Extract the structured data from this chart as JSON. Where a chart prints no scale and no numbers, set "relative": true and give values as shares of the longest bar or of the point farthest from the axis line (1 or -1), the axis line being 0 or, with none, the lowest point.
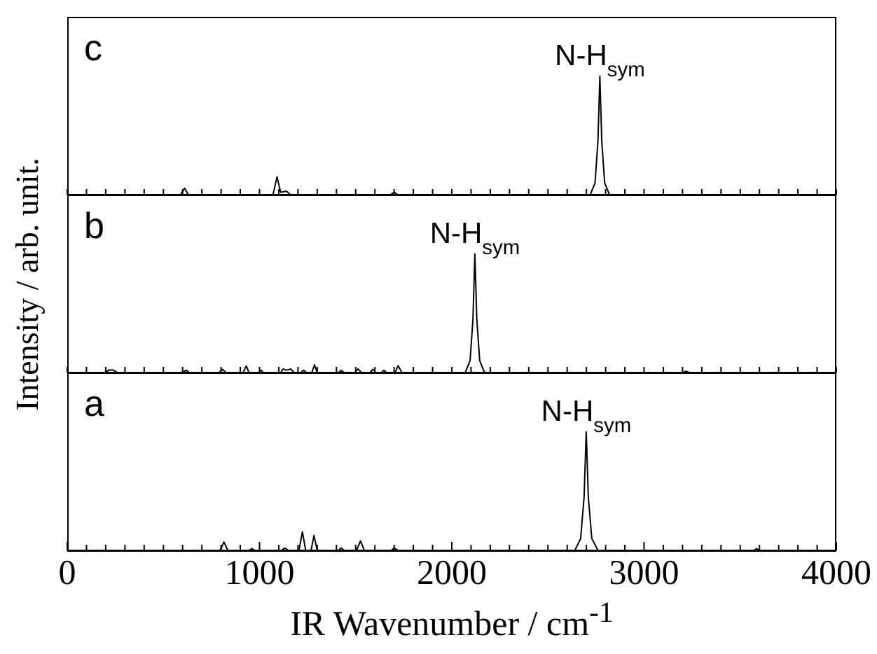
{
  "chart_data": [
    {
      "type": "line",
      "relative": true,
      "tick_labels": false,
      "color": "#000000",
      "annotations": [
        "c",
        {
          "text": "N-H$_{sym}$",
          "x": 2770,
          "y": 1
        }
      ],
      "xticks": [
        {
          "value": 0,
          "label": null
        },
        {
          "value": 100,
          "label": null
        },
        {
          "value": 200,
          "label": null
        },
        {
          "value": 300,
          "label": null
        },
        {
          "value": 400,
          "label": null
        },
        {
          "value": 500,
          "label": null
        },
        {
          "value": 600,
          "label": null
        },
        {
          "value": 700,
          "label": null
        },
        {
          "value": 800,
          "label": null
        },
        {
          "value": 900,
          "label": null
        },
        {
          "value": 1000,
          "label": null
        },
        {
          "value": 1100,
          "label": null
        },
        {
          "value": 1200,
          "label": null
        },
        {
          "value": 1300,
          "label": null
        },
        {
          "value": 1400,
          "label": null
        },
        {
          "value": 1500,
          "label": null
        },
        {
          "value": 1600,
          "label": null
        },
        {
          "value": 1700,
          "label": null
        },
        {
          "value": 1800,
          "label": null
        },
        {
          "value": 1900,
          "label": null
        },
        {
          "value": 2000,
          "label": null
        },
        {
          "value": 2100,
          "label": null
        },
        {
          "value": 2200,
          "label": null
        },
        {
          "value": 2300,
          "label": null
        },
        {
          "value": 2400,
          "label": null
        },
        {
          "value": 2500,
          "label": null
        },
        {
          "value": 2600,
          "label": null
        },
        {
          "value": 2700,
          "label": null
        },
        {
          "value": 2800,
          "label": null
        },
        {
          "value": 2900,
          "label": null
        },
        {
          "value": 3000,
          "label": null
        },
        {
          "value": 3100,
          "label": null
        },
        {
          "value": 3200,
          "label": null
        },
        {
          "value": 3300,
          "label": null
        },
        {
          "value": 3400,
          "label": null
        },
        {
          "value": 3500,
          "label": null
        },
        {
          "value": 3600,
          "label": null
        },
        {
          "value": 3700,
          "label": null
        },
        {
          "value": 3800,
          "label": null
        },
        {
          "value": 3900,
          "label": null
        },
        {
          "value": 4000,
          "label": null
        }
      ],
      "x": [
        0,
        590,
        610,
        630,
        1070,
        1091,
        1110,
        1140,
        1160,
        1680,
        1700,
        1720,
        2720,
        2745,
        2760,
        2770,
        2780,
        2795,
        2820,
        4000
      ],
      "values": [
        0,
        0,
        0.055,
        0,
        0,
        0.15,
        0.02,
        0.03,
        0,
        0,
        0.02,
        0,
        0,
        0.1,
        0.45,
        1,
        0.45,
        0.1,
        0,
        0
      ],
      "xlim": [
        0,
        4000
      ]
    },
    {
      "type": "line",
      "relative": true,
      "tick_labels": false,
      "color": "#000000",
      "ylabel": "Intensity / arb. unit.",
      "annotations": [
        "b",
        {
          "text": "N-H$_{sym}$",
          "x": 2120,
          "y": 1
        }
      ],
      "xticks": [
        {
          "value": 0,
          "label": null
        },
        {
          "value": 100,
          "label": null
        },
        {
          "value": 200,
          "label": null
        },
        {
          "value": 300,
          "label": null
        },
        {
          "value": 400,
          "label": null
        },
        {
          "value": 500,
          "label": null
        },
        {
          "value": 600,
          "label": null
        },
        {
          "value": 700,
          "label": null
        },
        {
          "value": 800,
          "label": null
        },
        {
          "value": 900,
          "label": null
        },
        {
          "value": 1000,
          "label": null
        },
        {
          "value": 1100,
          "label": null
        },
        {
          "value": 1200,
          "label": null
        },
        {
          "value": 1300,
          "label": null
        },
        {
          "value": 1400,
          "label": null
        },
        {
          "value": 1500,
          "label": null
        },
        {
          "value": 1600,
          "label": null
        },
        {
          "value": 1700,
          "label": null
        },
        {
          "value": 1800,
          "label": null
        },
        {
          "value": 1900,
          "label": null
        },
        {
          "value": 2000,
          "label": null
        },
        {
          "value": 2100,
          "label": null
        },
        {
          "value": 2200,
          "label": null
        },
        {
          "value": 2300,
          "label": null
        },
        {
          "value": 2400,
          "label": null
        },
        {
          "value": 2500,
          "label": null
        },
        {
          "value": 2600,
          "label": null
        },
        {
          "value": 2700,
          "label": null
        },
        {
          "value": 2800,
          "label": null
        },
        {
          "value": 2900,
          "label": null
        },
        {
          "value": 3000,
          "label": null
        },
        {
          "value": 3100,
          "label": null
        },
        {
          "value": 3200,
          "label": null
        },
        {
          "value": 3300,
          "label": null
        },
        {
          "value": 3400,
          "label": null
        },
        {
          "value": 3500,
          "label": null
        },
        {
          "value": 3600,
          "label": null
        },
        {
          "value": 3700,
          "label": null
        },
        {
          "value": 3800,
          "label": null
        },
        {
          "value": 3900,
          "label": null
        },
        {
          "value": 4000,
          "label": null
        }
      ],
      "x": [
        0,
        200,
        215,
        240,
        260,
        600,
        618,
        635,
        790,
        808,
        825,
        915,
        931,
        945,
        995,
        1008,
        1020,
        1110,
        1123,
        1140,
        1162,
        1180,
        1215,
        1228,
        1245,
        1272,
        1286,
        1300,
        1410,
        1425,
        1440,
        1495,
        1512,
        1530,
        1575,
        1590,
        1605,
        1635,
        1647,
        1660,
        1705,
        1721,
        1740,
        2070,
        2095,
        2110,
        2120,
        2130,
        2145,
        2170,
        3200,
        3218,
        3235,
        4000
      ],
      "values": [
        0,
        0,
        0.02,
        0.02,
        0,
        0,
        0.02,
        0,
        0,
        0.027,
        0,
        0,
        0.055,
        0,
        0,
        0.02,
        0,
        0,
        0.03,
        0.02,
        0.03,
        0,
        0,
        0.02,
        0,
        0,
        0.065,
        0,
        0,
        0.017,
        0,
        0,
        0.03,
        0,
        0,
        0.027,
        0,
        0,
        0.02,
        0,
        0,
        0.058,
        0,
        0,
        0.1,
        0.45,
        1,
        0.45,
        0.1,
        0,
        0,
        0.01,
        0,
        0
      ],
      "xlim": [
        0,
        4000
      ]
    },
    {
      "type": "line",
      "relative": true,
      "tick_labels": "x",
      "color": "#000000",
      "xlabel": "IR Wavenumber / cm$^{-1}$",
      "annotations": [
        "a",
        {
          "text": "N-H$_{sym}$",
          "x": 2699,
          "y": 1
        }
      ],
      "x": [
        0,
        795,
        815,
        835,
        945,
        960,
        975,
        1115,
        1131,
        1150,
        1205,
        1223,
        1240,
        1268,
        1283,
        1300,
        1410,
        1425,
        1440,
        1505,
        1525,
        1545,
        1685,
        1701,
        1720,
        2640,
        2670,
        2688,
        2699,
        2710,
        2728,
        2760,
        3570,
        3586,
        3600,
        4000
      ],
      "values": [
        0,
        0,
        0.07,
        0,
        0,
        0.015,
        0,
        0,
        0.02,
        0,
        0,
        0.157,
        0,
        0,
        0.125,
        0,
        0,
        0.02,
        0,
        0,
        0.08,
        0,
        0,
        0.02,
        0,
        0,
        0.1,
        0.45,
        1,
        0.45,
        0.1,
        0,
        0,
        0.015,
        0,
        0
      ],
      "xlim": [
        0,
        4000
      ],
      "xticks": [
        {
          "value": 0,
          "label": "0"
        },
        {
          "value": 100,
          "label": null
        },
        {
          "value": 200,
          "label": null
        },
        {
          "value": 300,
          "label": null
        },
        {
          "value": 400,
          "label": null
        },
        {
          "value": 500,
          "label": null
        },
        {
          "value": 600,
          "label": null
        },
        {
          "value": 700,
          "label": null
        },
        {
          "value": 800,
          "label": null
        },
        {
          "value": 900,
          "label": null
        },
        {
          "value": 1000,
          "label": "1000"
        },
        {
          "value": 1100,
          "label": null
        },
        {
          "value": 1200,
          "label": null
        },
        {
          "value": 1300,
          "label": null
        },
        {
          "value": 1400,
          "label": null
        },
        {
          "value": 1500,
          "label": null
        },
        {
          "value": 1600,
          "label": null
        },
        {
          "value": 1700,
          "label": null
        },
        {
          "value": 1800,
          "label": null
        },
        {
          "value": 1900,
          "label": null
        },
        {
          "value": 2000,
          "label": "2000"
        },
        {
          "value": 2100,
          "label": null
        },
        {
          "value": 2200,
          "label": null
        },
        {
          "value": 2300,
          "label": null
        },
        {
          "value": 2400,
          "label": null
        },
        {
          "value": 2500,
          "label": null
        },
        {
          "value": 2600,
          "label": null
        },
        {
          "value": 2700,
          "label": null
        },
        {
          "value": 2800,
          "label": null
        },
        {
          "value": 2900,
          "label": null
        },
        {
          "value": 3000,
          "label": "3000"
        },
        {
          "value": 3100,
          "label": null
        },
        {
          "value": 3200,
          "label": null
        },
        {
          "value": 3300,
          "label": null
        },
        {
          "value": 3400,
          "label": null
        },
        {
          "value": 3500,
          "label": null
        },
        {
          "value": 3600,
          "label": null
        },
        {
          "value": 3700,
          "label": null
        },
        {
          "value": 3800,
          "label": null
        },
        {
          "value": 3900,
          "label": null
        },
        {
          "value": 4000,
          "label": "4000"
        }
      ]
    }
  ]
}
